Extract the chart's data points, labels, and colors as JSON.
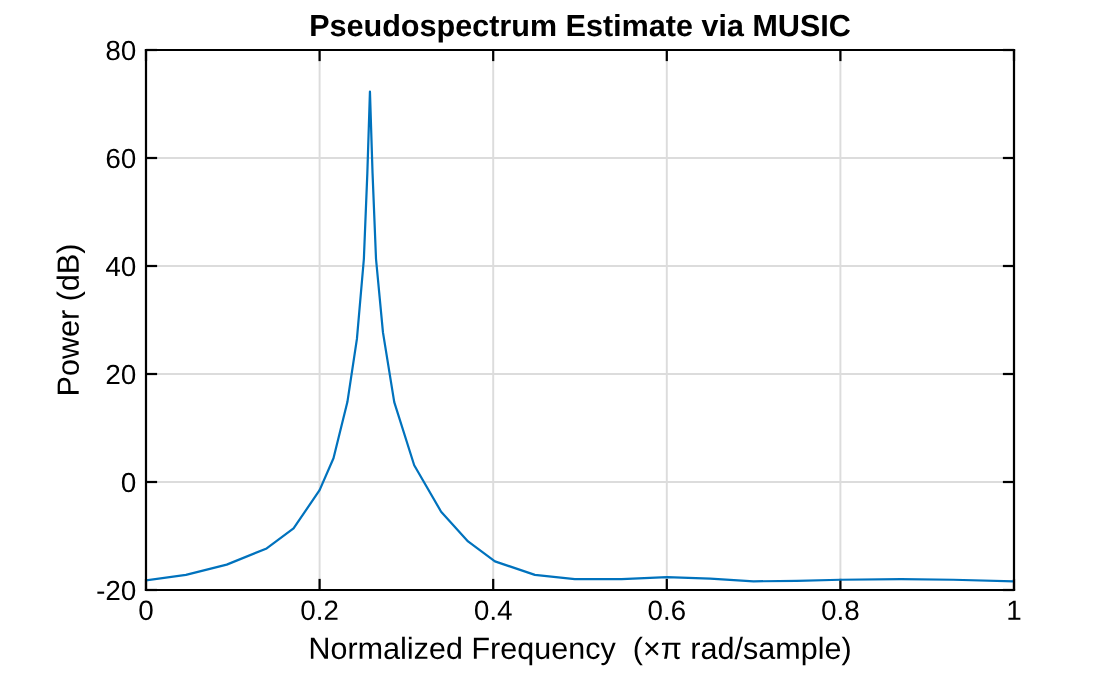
{
  "chart_data": {
    "type": "line",
    "title": "Pseudospectrum Estimate via MUSIC",
    "xlabel": "Normalized Frequency  (×π rad/sample)",
    "ylabel": "Power (dB)",
    "series": [
      {
        "color": "#0072bd",
        "x": [
          0,
          0.046,
          0.093,
          0.139,
          0.17,
          0.2,
          0.216,
          0.232,
          0.243,
          0.251,
          0.255,
          0.258,
          0.261,
          0.265,
          0.273,
          0.286,
          0.309,
          0.34,
          0.371,
          0.402,
          0.448,
          0.494,
          0.548,
          0.6,
          0.65,
          0.7,
          0.75,
          0.8,
          0.87,
          0.93,
          1.0
        ],
        "values": [
          -18.2,
          -17.2,
          -15.3,
          -12.3,
          -8.6,
          -1.5,
          4.4,
          14.8,
          26.5,
          41.3,
          57.2,
          72.3,
          57.2,
          41.3,
          27.7,
          14.8,
          3.1,
          -5.5,
          -11,
          -14.7,
          -17.2,
          -18,
          -18,
          -17.6,
          -17.9,
          -18.4,
          -18.3,
          -18.1,
          -18,
          -18.1,
          -18.4
        ]
      }
    ],
    "xlim": [
      0,
      1
    ],
    "ylim": [
      -20,
      80
    ],
    "xticks": [
      0,
      0.2,
      0.4,
      0.6,
      0.8,
      1
    ],
    "yticks": [
      -20,
      0,
      20,
      40,
      60,
      80
    ],
    "grid": true,
    "legend": false,
    "marker": "none",
    "line_style": "solid"
  }
}
